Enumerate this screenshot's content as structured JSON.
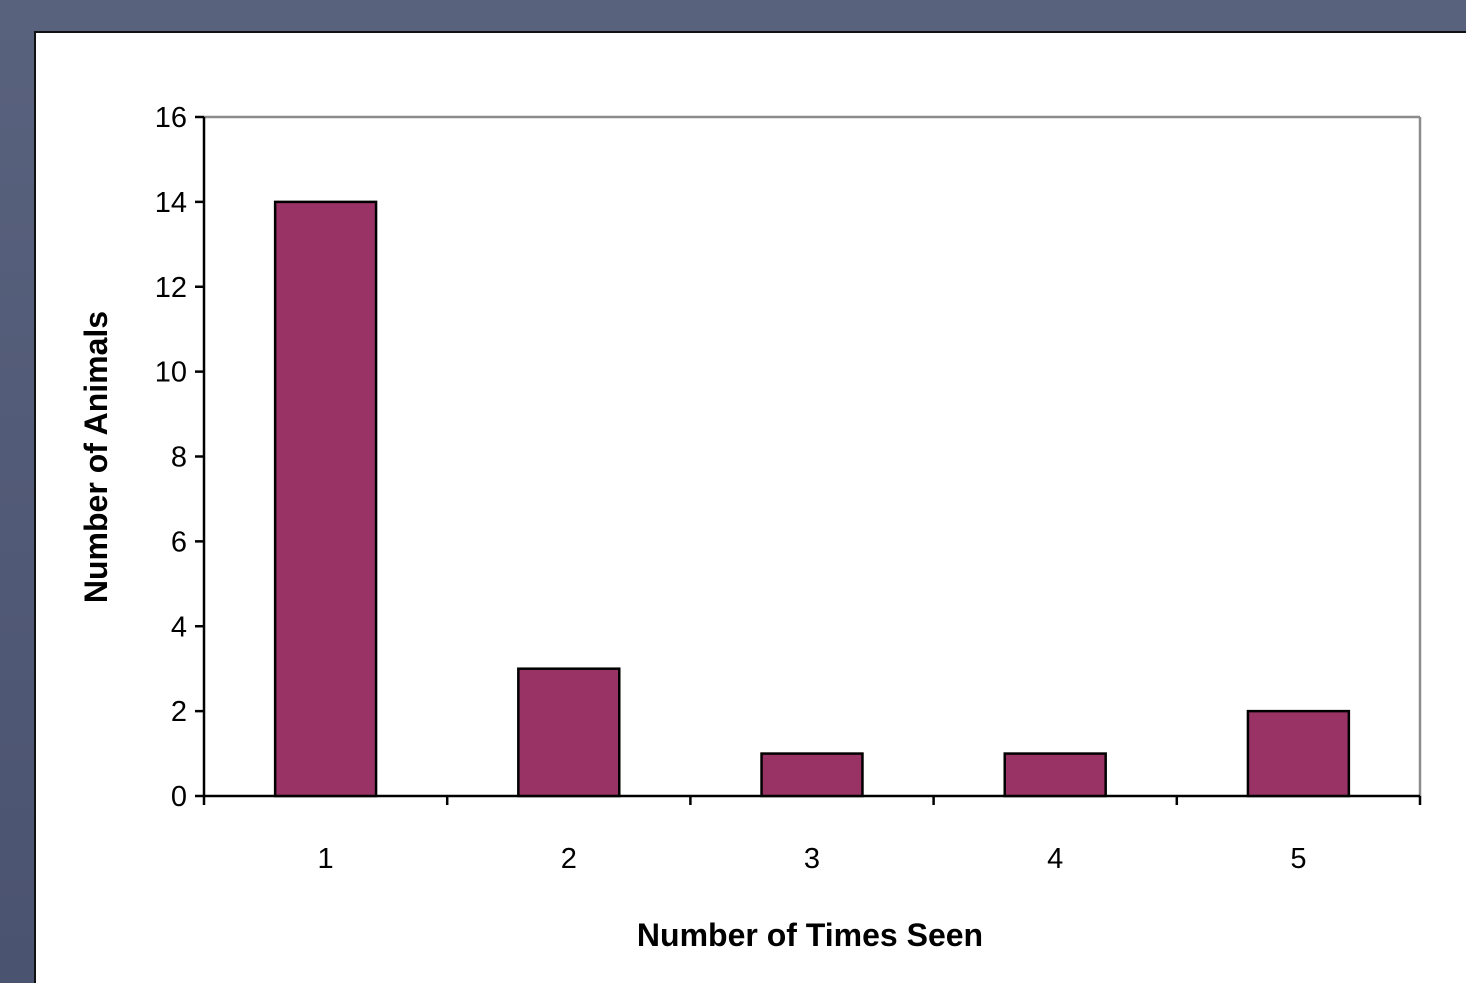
{
  "chart_data": {
    "type": "bar",
    "categories": [
      "1",
      "2",
      "3",
      "4",
      "5"
    ],
    "values": [
      14,
      3,
      1,
      1,
      2
    ],
    "title": "",
    "xlabel": "Number of Times Seen",
    "ylabel": "Number of Animals",
    "ylim": [
      0,
      16
    ],
    "yticks": [
      "0",
      "2",
      "4",
      "6",
      "8",
      "10",
      "12",
      "14",
      "16"
    ],
    "grid": false,
    "legend": "none",
    "bar_color": "#993366",
    "bar_edge_color": "#000000"
  }
}
